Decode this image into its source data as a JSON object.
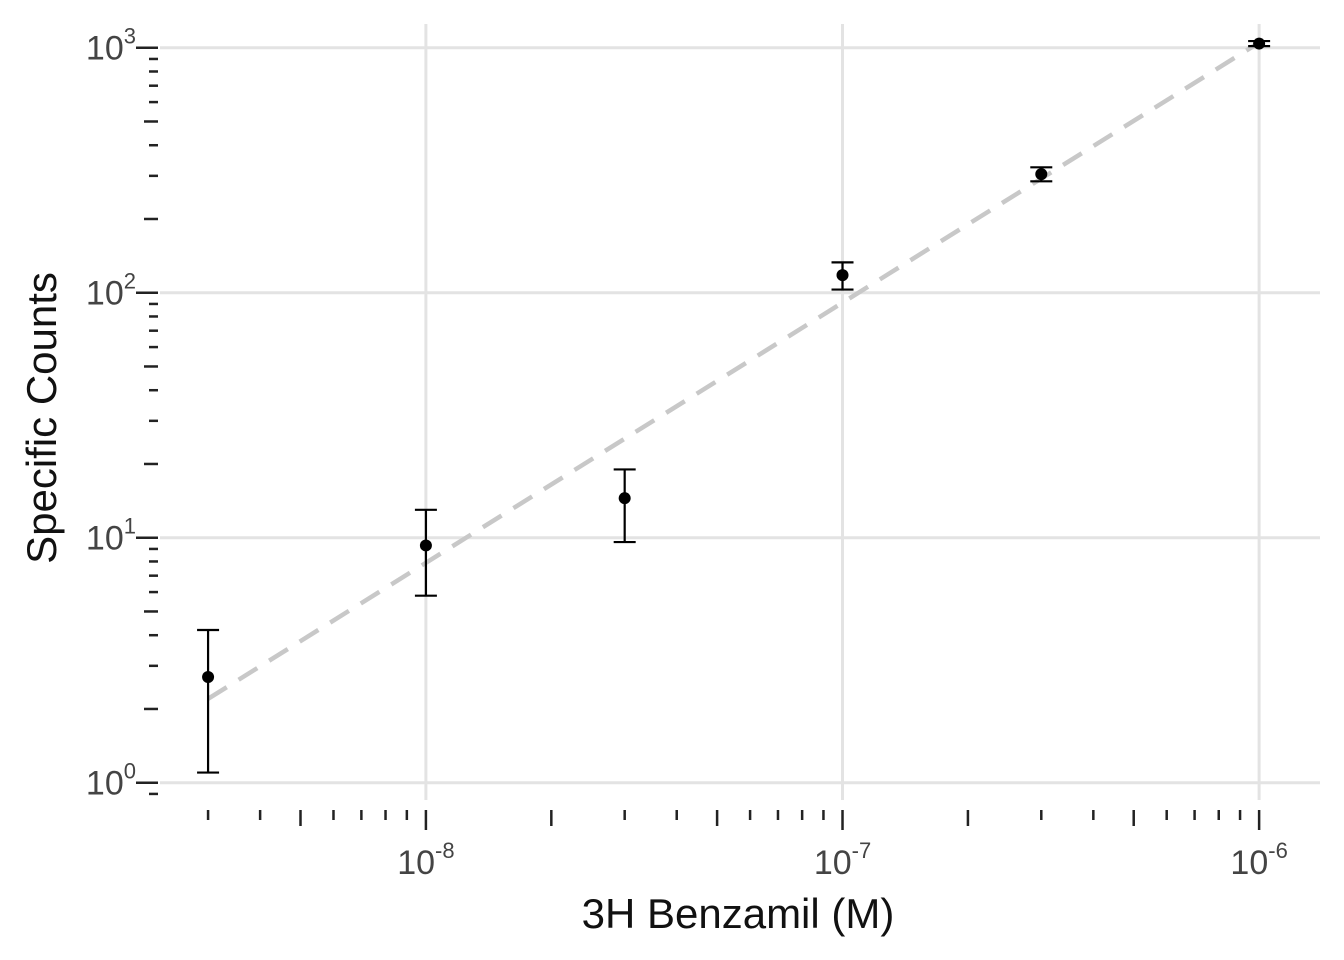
{
  "chart_data": {
    "type": "scatter",
    "title": "",
    "xlabel": "3H Benzamil (M)",
    "ylabel": "Specific Counts",
    "xscale": "log",
    "yscale": "log",
    "xlim": [
      2.3e-09,
      1.4e-06
    ],
    "ylim": [
      0.85,
      1250
    ],
    "grid": true,
    "legend": "none",
    "x_major_ticks": [
      {
        "value": 1e-08,
        "base": "10",
        "exp": "-8"
      },
      {
        "value": 1e-07,
        "base": "10",
        "exp": "-7"
      },
      {
        "value": 1e-06,
        "base": "10",
        "exp": "-6"
      }
    ],
    "y_major_ticks": [
      {
        "value": 1,
        "base": "10",
        "exp": "0"
      },
      {
        "value": 10,
        "base": "10",
        "exp": "1"
      },
      {
        "value": 100,
        "base": "10",
        "exp": "2"
      },
      {
        "value": 1000,
        "base": "10",
        "exp": "3"
      }
    ],
    "series": [
      {
        "x": [
          3e-09,
          1e-08,
          3e-08,
          1e-07,
          3e-07,
          1e-06
        ],
        "y": [
          2.7,
          9.3,
          14.5,
          118,
          305,
          1040
        ],
        "y_err_low": [
          1.1,
          5.8,
          9.6,
          103,
          285,
          1015
        ],
        "y_err_high": [
          4.2,
          13.0,
          19.0,
          133,
          325,
          1065
        ]
      }
    ],
    "fit_line": {
      "x": [
        3e-09,
        1e-06
      ],
      "y": [
        2.2,
        1050
      ],
      "style": "dashed",
      "color": "#c8c8c8"
    },
    "colors": {
      "points": "#000000",
      "grid": "#e3e3e3",
      "fit": "#c8c8c8"
    }
  }
}
